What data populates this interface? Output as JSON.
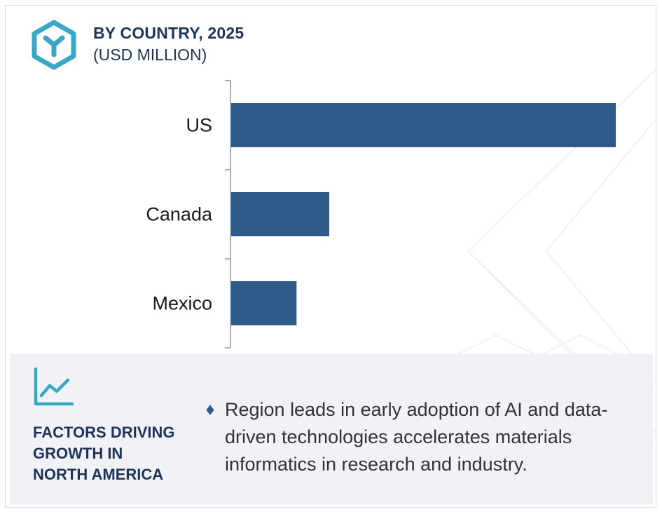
{
  "header": {
    "icon": "hexagon-y-logo-icon",
    "title": "BY COUNTRY, 2025",
    "subtitle": "(USD MILLION)"
  },
  "colors": {
    "bar": "#2e5b8a",
    "accent": "#3aa7c4",
    "heading": "#1e3557",
    "panel_bg": "#f0f2f7"
  },
  "chart_data": {
    "type": "bar",
    "orientation": "horizontal",
    "title": "BY COUNTRY, 2025",
    "subtitle": "(USD MILLION)",
    "categories": [
      "US",
      "Canada",
      "Mexico"
    ],
    "values": [
      100,
      25.5,
      17
    ],
    "value_note": "relative bar lengths; no axis values are printed",
    "xlim": [
      0,
      100
    ],
    "grid": false
  },
  "factors": {
    "icon": "trend-chart-icon",
    "heading_lines": [
      "FACTORS DRIVING",
      "GROWTH IN",
      "NORTH AMERICA"
    ],
    "bullet_icon": "diamond-bullet-icon",
    "bullet_text_lines": [
      "Region leads in early adoption of AI and data-",
      "driven technologies accelerates materials",
      "informatics in research and industry."
    ]
  }
}
